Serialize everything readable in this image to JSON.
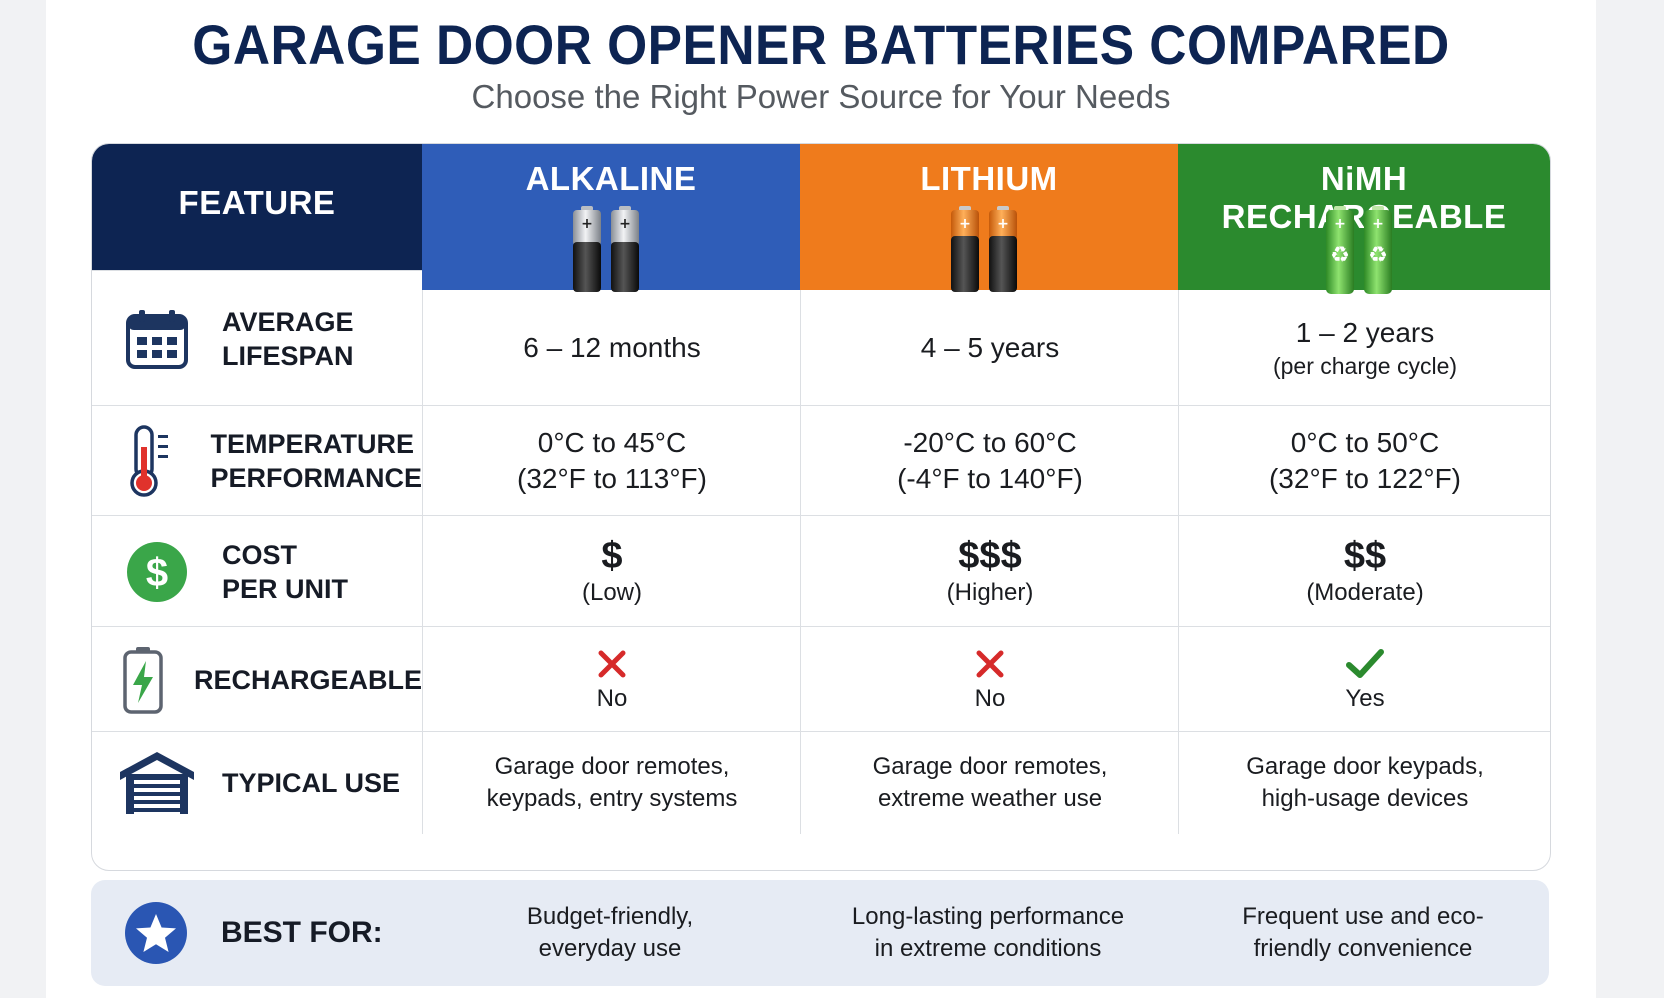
{
  "header": {
    "title": "GARAGE DOOR OPENER BATTERIES COMPARED",
    "subtitle": "Choose the Right Power Source for Your Needs"
  },
  "columns": {
    "feature": "FEATURE",
    "alkaline": "ALKALINE",
    "lithium": "LITHIUM",
    "nimh": "NiMH RECHARGEABLE"
  },
  "colors": {
    "navy": "#0d2452",
    "alkaline": "#2f5db8",
    "lithium": "#ef7b1c",
    "nimh": "#2b8a2e",
    "cross": "#d62a2a",
    "check": "#2b8a2e"
  },
  "rows": {
    "lifespan": {
      "label": "AVERAGE\nLIFESPAN",
      "icon": "calendar-icon",
      "alkaline": "6 – 12 months",
      "lithium": "4 – 5 years",
      "nimh": "1 – 2 years",
      "nimh_sub": "(per charge cycle)"
    },
    "temperature": {
      "label": "TEMPERATURE\nPERFORMANCE",
      "icon": "thermometer-icon",
      "alkaline": "0°C to 45°C",
      "alkaline_sub": "(32°F to 113°F)",
      "lithium": "-20°C to 60°C",
      "lithium_sub": "(-4°F to 140°F)",
      "nimh": "0°C to 50°C",
      "nimh_sub": "(32°F to 122°F)"
    },
    "cost": {
      "label": "COST\nPER UNIT",
      "icon": "dollar-icon",
      "alkaline": "$",
      "alkaline_sub": "(Low)",
      "lithium": "$$$",
      "lithium_sub": "(Higher)",
      "nimh": "$$",
      "nimh_sub": "(Moderate)"
    },
    "rechargeable": {
      "label": "RECHARGEABLE",
      "icon": "battery-charge-icon",
      "alkaline": "No",
      "lithium": "No",
      "nimh": "Yes"
    },
    "typical_use": {
      "label": "TYPICAL USE",
      "icon": "garage-icon",
      "alkaline": "Garage door remotes,\nkeypads, entry systems",
      "lithium": "Garage door remotes,\nextreme weather use",
      "nimh": "Garage door keypads,\nhigh-usage devices"
    }
  },
  "best_for": {
    "label": "BEST FOR:",
    "icon": "star-icon",
    "alkaline": "Budget-friendly,\neveryday use",
    "lithium": "Long-lasting performance\nin extreme conditions",
    "nimh": "Frequent use and eco-\nfriendly convenience"
  }
}
